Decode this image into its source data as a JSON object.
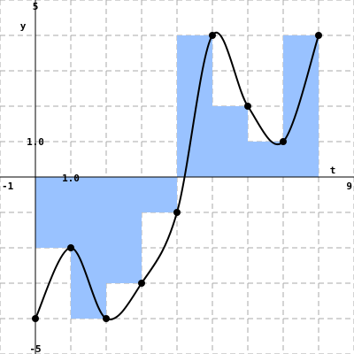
{
  "chart_data": {
    "type": "line",
    "title": "",
    "xlabel": "t",
    "ylabel": "y",
    "xlim": [
      -1,
      9
    ],
    "ylim": [
      -5,
      5
    ],
    "grid": true,
    "tick_labels": {
      "x_min": "-1",
      "x_max": "9",
      "x_unit": "1.0",
      "y_max": "5",
      "y_min": "-5",
      "y_unit": "1.0"
    },
    "series": [
      {
        "kind": "bar",
        "color": "#99c2ff",
        "x": [
          0,
          1,
          2,
          3,
          4,
          5,
          6,
          7
        ],
        "widths": [
          1,
          1,
          1,
          1,
          1,
          1,
          1,
          1
        ],
        "values": [
          -2,
          -4,
          -3,
          -1,
          4,
          2,
          1,
          4
        ]
      },
      {
        "kind": "line",
        "color": "#000000",
        "x": [
          0,
          1,
          2,
          3,
          4,
          5,
          6,
          7,
          8
        ],
        "values": [
          -4,
          -2,
          -4,
          -3,
          -1,
          4,
          2,
          1,
          4
        ]
      }
    ]
  }
}
